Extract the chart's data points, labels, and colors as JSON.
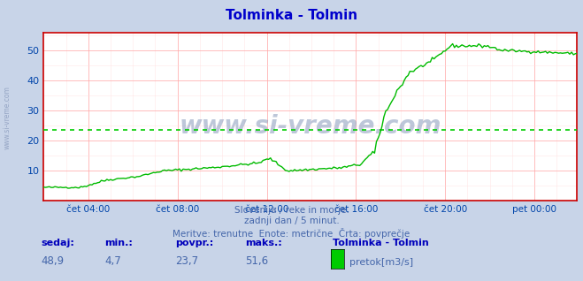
{
  "title": "Tolminka - Tolmin",
  "title_color": "#0000cc",
  "bg_color": "#c8d4e8",
  "plot_bg_color": "#ffffff",
  "line_color": "#00bb00",
  "avg_line_color": "#00cc00",
  "avg_value": 23.7,
  "grid_color": "#ffaaaa",
  "grid_minor_color": "#ffdddd",
  "xlabel_color": "#0044aa",
  "ylabel_color": "#0044aa",
  "spine_color": "#cc0000",
  "ylim": [
    0,
    56
  ],
  "yticks": [
    10,
    20,
    30,
    40,
    50
  ],
  "xtick_labels": [
    "čet 04:00",
    "čet 08:00",
    "čet 12:00",
    "čet 16:00",
    "čet 20:00",
    "pet 00:00"
  ],
  "subtitle1": "Slovenija / reke in morje.",
  "subtitle2": "zadnji dan / 5 minut.",
  "subtitle3": "Meritve: trenutne  Enote: metrične  Črta: povprečje",
  "subtitle_color": "#4466aa",
  "footer_label_color": "#0000bb",
  "footer_value_color": "#4466aa",
  "footer_items": [
    {
      "label": "sedaj:",
      "value": "48,9"
    },
    {
      "label": "min.:",
      "value": "4,7"
    },
    {
      "label": "povpr.:",
      "value": "23,7"
    },
    {
      "label": "maks.:",
      "value": "51,6"
    }
  ],
  "legend_title": "Tolminka - Tolmin",
  "legend_label": "pretok[m3/s]",
  "legend_color": "#00cc00",
  "num_points": 288,
  "watermark_text": "www.si-vreme.com",
  "left_watermark": "www.si-vreme.com"
}
